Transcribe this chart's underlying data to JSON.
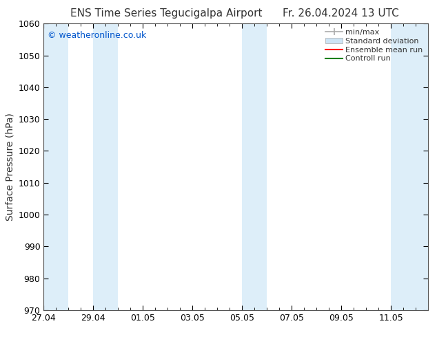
{
  "title_left": "ENS Time Series Tegucigalpa Airport",
  "title_right": "Fr. 26.04.2024 13 UTC",
  "ylabel": "Surface Pressure (hPa)",
  "ylim": [
    970,
    1060
  ],
  "yticks": [
    970,
    980,
    990,
    1000,
    1010,
    1020,
    1030,
    1040,
    1050,
    1060
  ],
  "xtick_labels": [
    "27.04",
    "29.04",
    "01.05",
    "03.05",
    "05.05",
    "07.05",
    "09.05",
    "11.05"
  ],
  "xtick_positions": [
    0,
    2,
    4,
    6,
    8,
    10,
    12,
    14
  ],
  "xlim": [
    0,
    15.5
  ],
  "shaded_bands": [
    {
      "start": 0.0,
      "end": 1.0
    },
    {
      "start": 2.0,
      "end": 3.0
    },
    {
      "start": 8.0,
      "end": 9.0
    },
    {
      "start": 14.0,
      "end": 15.5
    }
  ],
  "band_color": "#ddeef9",
  "watermark": "© weatheronline.co.uk",
  "watermark_color": "#0055cc",
  "legend_labels": [
    "min/max",
    "Standard deviation",
    "Ensemble mean run",
    "Controll run"
  ],
  "legend_colors": [
    "#aaaaaa",
    "#cde4f5",
    "red",
    "green"
  ],
  "background_color": "#ffffff",
  "title_fontsize": 11,
  "tick_fontsize": 9,
  "ylabel_fontsize": 10,
  "watermark_fontsize": 9
}
